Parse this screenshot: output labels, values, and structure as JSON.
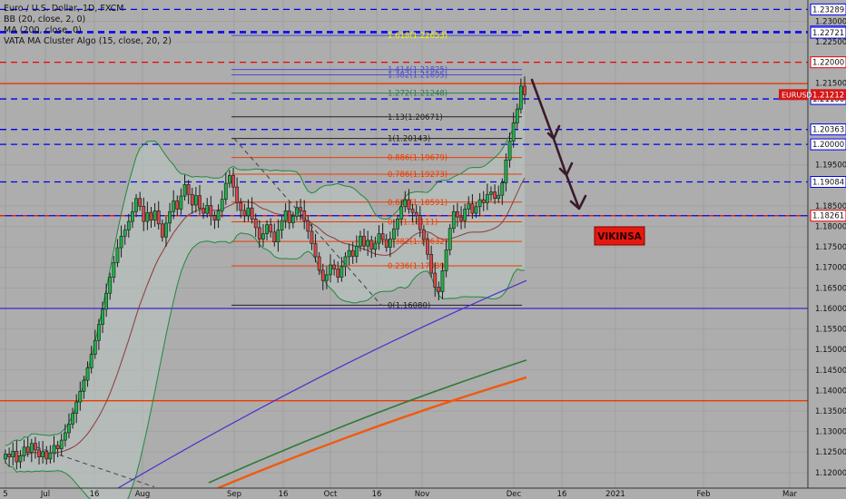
{
  "legend": {
    "title": "Euro / U.S. Dollar, 1D, FXCM",
    "bb": "BB (20, close, 2, 0)",
    "ma": "MA (200, close, 0)",
    "vata": "VATA MA Cluster Algo (15, close, 20, 2)"
  },
  "colors": {
    "background": "#adadad",
    "up_candle": "#20b04a",
    "down_candle": "#d64848",
    "blue_dashed": "#0000ee",
    "red_dashed": "#ee0000",
    "purple_line": "#4b2fd0",
    "bb_band": "#1f8a3d",
    "fib_line": "#ee3b00",
    "arrow": "#3a1b2c",
    "vikinsa_bg": "#e4190f"
  },
  "chart_data": {
    "type": "candlestick",
    "symbol": "EURUSD",
    "last_price": 1.21212,
    "x_axis_labels": [
      "5",
      "Jul",
      "16",
      "Aug",
      "Sep",
      "16",
      "Oct",
      "16",
      "Nov",
      "Dec",
      "16",
      "2021",
      "Feb",
      "Mar"
    ],
    "y_axis_ticks": [
      1.12,
      1.125,
      1.13,
      1.135,
      1.14,
      1.145,
      1.15,
      1.155,
      1.16,
      1.165,
      1.17,
      1.175,
      1.18,
      1.185,
      1.195,
      1.2,
      1.215,
      1.225,
      1.23
    ],
    "ylim": [
      1.1162,
      1.2343
    ],
    "horizontal_levels": [
      {
        "value": 1.23289,
        "label": "1.23289",
        "style": "blue-dashed"
      },
      {
        "value": 1.2275,
        "label": "1.2275",
        "style": "blue-dashed"
      },
      {
        "value": 1.22721,
        "label": "1.22721",
        "style": "blue-dashed"
      },
      {
        "value": 1.22,
        "label": "1.22000",
        "style": "red-dashed"
      },
      {
        "value": 1.2148,
        "label": "",
        "style": "orange-solid"
      },
      {
        "value": 1.21106,
        "label": "1.21106",
        "style": "blue-dashed"
      },
      {
        "value": 1.20363,
        "label": "1.20363",
        "style": "blue-dashed"
      },
      {
        "value": 1.2,
        "label": "1.20000",
        "style": "blue-dashed"
      },
      {
        "value": 1.19084,
        "label": "1.19084",
        "style": "blue-dashed"
      },
      {
        "value": 1.18261,
        "label": "1.18261",
        "style": "red-blue-dashed"
      },
      {
        "value": 1.16,
        "label": "",
        "style": "purple-solid"
      },
      {
        "value": 1.1375,
        "label": "",
        "style": "orange-solid"
      }
    ],
    "fib_levels": [
      {
        "label": "1.618(1.22653)",
        "value": 1.22653
      },
      {
        "label": "1.414(1.21825)",
        "value": 1.21825
      },
      {
        "label": "1.382(1.21695)",
        "value": 1.21695
      },
      {
        "label": "1.272(1.21248)",
        "value": 1.21248
      },
      {
        "label": "1.13(1.20671)",
        "value": 1.20671
      },
      {
        "label": "1(1.20143)",
        "value": 1.20143
      },
      {
        "label": "0.886(1.19679)",
        "value": 1.19679
      },
      {
        "label": "0.786(1.19273)",
        "value": 1.19273
      },
      {
        "label": "0.618(1.18591)",
        "value": 1.18591
      },
      {
        "label": "0.5(1.18111)",
        "value": 1.18111
      },
      {
        "label": "0.382(1.17632)",
        "value": 1.17632
      },
      {
        "label": "0.236(1.17039)",
        "value": 1.17039
      },
      {
        "label": "0(1.16080)",
        "value": 1.1608
      }
    ],
    "candles_close": [
      1.1245,
      1.1238,
      1.1252,
      1.1226,
      1.1241,
      1.1262,
      1.1249,
      1.1271,
      1.1255,
      1.1238,
      1.1251,
      1.1233,
      1.1248,
      1.1266,
      1.1258,
      1.1279,
      1.1297,
      1.1318,
      1.1344,
      1.1372,
      1.1398,
      1.1425,
      1.1455,
      1.1488,
      1.1522,
      1.1561,
      1.1598,
      1.1637,
      1.1676,
      1.1712,
      1.1748,
      1.1776,
      1.1791,
      1.1812,
      1.1836,
      1.1868,
      1.1849,
      1.1812,
      1.1834,
      1.1815,
      1.1838,
      1.1806,
      1.1774,
      1.1808,
      1.1836,
      1.1862,
      1.1842,
      1.1874,
      1.1902,
      1.1878,
      1.1852,
      1.1875,
      1.1844,
      1.1832,
      1.1851,
      1.1826,
      1.1815,
      1.1838,
      1.1866,
      1.1905,
      1.1924,
      1.1896,
      1.1858,
      1.1839,
      1.1826,
      1.1845,
      1.1818,
      1.1797,
      1.1769,
      1.1782,
      1.1804,
      1.1786,
      1.1762,
      1.1791,
      1.1814,
      1.1838,
      1.1809,
      1.1825,
      1.1846,
      1.1838,
      1.1814,
      1.1788,
      1.1758,
      1.1726,
      1.1693,
      1.1668,
      1.1682,
      1.1706,
      1.1696,
      1.1676,
      1.1702,
      1.1726,
      1.1741,
      1.1727,
      1.1752,
      1.1776,
      1.1752,
      1.1766,
      1.1744,
      1.1759,
      1.1782,
      1.1768,
      1.1749,
      1.1769,
      1.1794,
      1.1818,
      1.1848,
      1.1865,
      1.1842,
      1.1834,
      1.1826,
      1.1792,
      1.1768,
      1.1732,
      1.1686,
      1.1652,
      1.1641,
      1.1692,
      1.1743,
      1.1795,
      1.1836,
      1.1823,
      1.1814,
      1.1842,
      1.1855,
      1.1832,
      1.1848,
      1.1865,
      1.1858,
      1.1878,
      1.1884,
      1.1868,
      1.1876,
      1.1906,
      1.1962,
      1.2008,
      1.2052,
      1.2086,
      1.2142,
      1.2121
    ]
  },
  "price_labels": {
    "eurusd_tag": "EURUSD",
    "eurusd_value": "1.21212"
  },
  "watermark": "VIKINSA"
}
